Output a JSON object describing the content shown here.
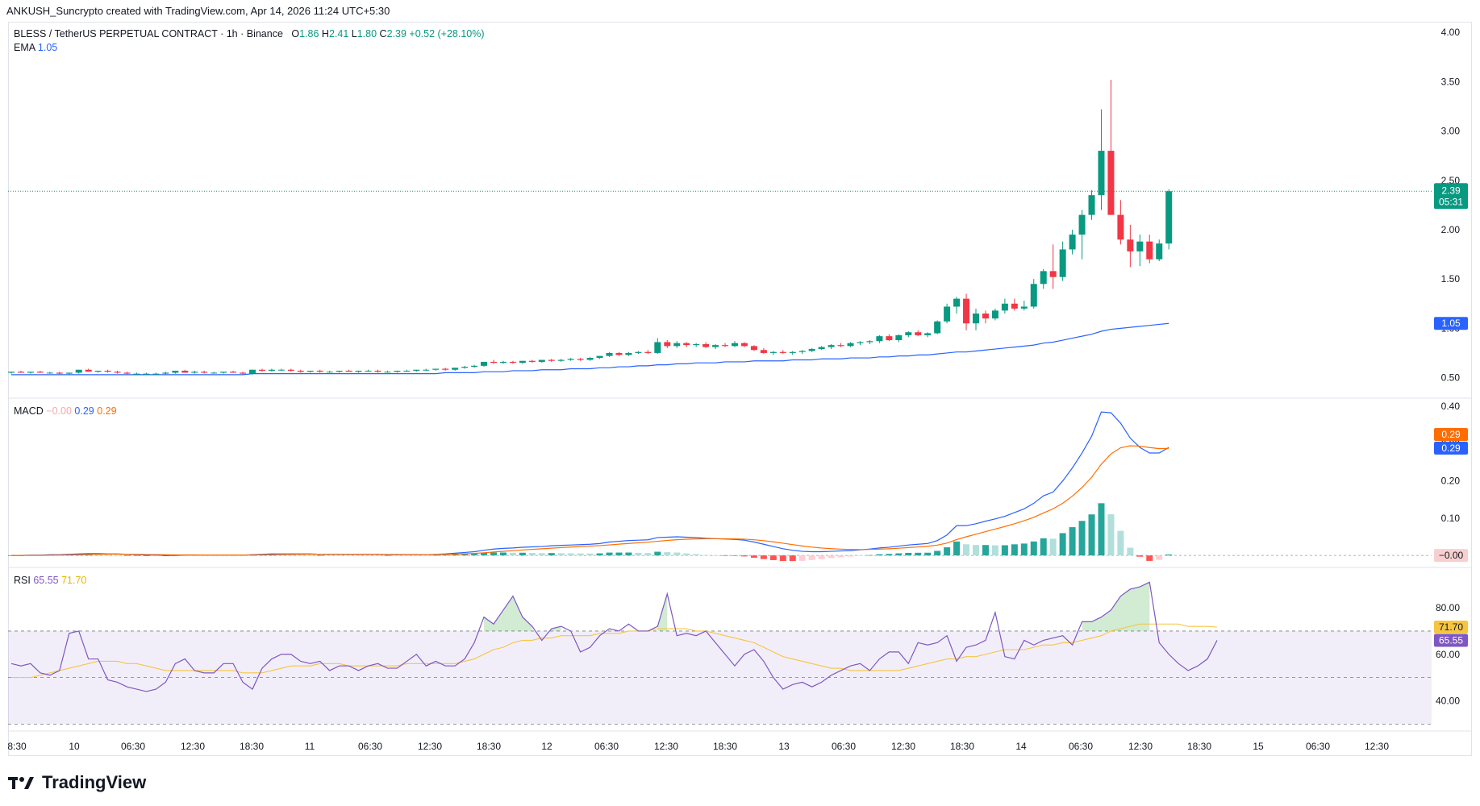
{
  "header": {
    "attribution": "ANKUSH_Suncrypto created with TradingView.com, Apr 14, 2026 11:24 UTC+5:30"
  },
  "legend": {
    "symbol": "BLESS / TetherUS PERPETUAL CONTRACT · 1h · Binance",
    "o_label": "O",
    "o": "1.86",
    "h_label": "H",
    "h": "2.41",
    "l_label": "L",
    "l": "1.80",
    "c_label": "C",
    "c": "2.39",
    "change": "+0.52 (+28.10%)",
    "ema_label": "EMA",
    "ema": "1.05",
    "macd_label": "MACD",
    "macd_hist": "−0.00",
    "macd_line": "0.29",
    "macd_signal": "0.29",
    "rsi_label": "RSI",
    "rsi": "65.55",
    "rsi_ma": "71.70"
  },
  "price_tags": {
    "last_price": "2.39",
    "countdown": "05:31",
    "ema": "1.05",
    "macd_signal": "0.29",
    "macd_line": "0.29",
    "macd_hist": "−0.00",
    "rsi_ma": "71.70",
    "rsi": "65.55"
  },
  "colors": {
    "up": "#089981",
    "down": "#f23645",
    "ema": "#2962ff",
    "macd": "#2962ff",
    "signal": "#ff6d00",
    "rsi": "#7e57c2",
    "rsi_ma": "#f5c542"
  },
  "footer": {
    "logo_text": "TradingView"
  },
  "chart_data": [
    {
      "type": "candlestick",
      "panel": "price",
      "y_ticks": [
        "4.00",
        "3.50",
        "3.00",
        "2.50",
        "2.00",
        "1.50",
        "1.00",
        "0.50"
      ],
      "ylim": [
        0.3,
        4.1
      ],
      "x_tick_labels": [
        "8:30",
        "10",
        "06:30",
        "12:30",
        "18:30",
        "11",
        "06:30",
        "12:30",
        "18:30",
        "12",
        "06:30",
        "12:30",
        "18:30",
        "13",
        "06:30",
        "12:30",
        "18:30",
        "14",
        "06:30",
        "12:30",
        "18:30",
        "15",
        "06:30",
        "12:30"
      ],
      "candles": [
        [
          0.55,
          0.56,
          0.54,
          0.56
        ],
        [
          0.56,
          0.57,
          0.55,
          0.55
        ],
        [
          0.55,
          0.56,
          0.54,
          0.56
        ],
        [
          0.56,
          0.57,
          0.55,
          0.55
        ],
        [
          0.55,
          0.56,
          0.54,
          0.55
        ],
        [
          0.55,
          0.56,
          0.53,
          0.54
        ],
        [
          0.54,
          0.55,
          0.53,
          0.55
        ],
        [
          0.55,
          0.58,
          0.54,
          0.58
        ],
        [
          0.58,
          0.59,
          0.56,
          0.56
        ],
        [
          0.56,
          0.57,
          0.55,
          0.57
        ],
        [
          0.57,
          0.58,
          0.55,
          0.56
        ],
        [
          0.56,
          0.57,
          0.54,
          0.55
        ],
        [
          0.55,
          0.56,
          0.53,
          0.54
        ],
        [
          0.54,
          0.55,
          0.53,
          0.54
        ],
        [
          0.54,
          0.55,
          0.53,
          0.54
        ],
        [
          0.54,
          0.55,
          0.53,
          0.54
        ],
        [
          0.54,
          0.56,
          0.53,
          0.55
        ],
        [
          0.55,
          0.57,
          0.54,
          0.57
        ],
        [
          0.57,
          0.58,
          0.55,
          0.55
        ],
        [
          0.55,
          0.57,
          0.54,
          0.56
        ],
        [
          0.56,
          0.57,
          0.54,
          0.55
        ],
        [
          0.55,
          0.56,
          0.54,
          0.55
        ],
        [
          0.55,
          0.56,
          0.54,
          0.56
        ],
        [
          0.56,
          0.57,
          0.55,
          0.55
        ],
        [
          0.55,
          0.56,
          0.53,
          0.54
        ],
        [
          0.54,
          0.58,
          0.53,
          0.58
        ],
        [
          0.58,
          0.59,
          0.56,
          0.57
        ],
        [
          0.57,
          0.59,
          0.56,
          0.58
        ],
        [
          0.58,
          0.59,
          0.57,
          0.58
        ],
        [
          0.58,
          0.59,
          0.56,
          0.57
        ],
        [
          0.57,
          0.58,
          0.55,
          0.56
        ],
        [
          0.56,
          0.57,
          0.55,
          0.57
        ],
        [
          0.57,
          0.58,
          0.55,
          0.56
        ],
        [
          0.56,
          0.57,
          0.55,
          0.56
        ],
        [
          0.56,
          0.57,
          0.55,
          0.57
        ],
        [
          0.57,
          0.58,
          0.56,
          0.56
        ],
        [
          0.56,
          0.57,
          0.55,
          0.57
        ],
        [
          0.57,
          0.58,
          0.56,
          0.57
        ],
        [
          0.57,
          0.58,
          0.55,
          0.56
        ],
        [
          0.56,
          0.57,
          0.55,
          0.56
        ],
        [
          0.56,
          0.57,
          0.55,
          0.57
        ],
        [
          0.57,
          0.58,
          0.56,
          0.57
        ],
        [
          0.57,
          0.58,
          0.56,
          0.58
        ],
        [
          0.58,
          0.59,
          0.57,
          0.58
        ],
        [
          0.58,
          0.59,
          0.57,
          0.59
        ],
        [
          0.59,
          0.6,
          0.57,
          0.58
        ],
        [
          0.58,
          0.6,
          0.57,
          0.6
        ],
        [
          0.6,
          0.62,
          0.59,
          0.61
        ],
        [
          0.61,
          0.63,
          0.6,
          0.62
        ],
        [
          0.62,
          0.66,
          0.61,
          0.66
        ],
        [
          0.66,
          0.68,
          0.64,
          0.65
        ],
        [
          0.65,
          0.67,
          0.64,
          0.66
        ],
        [
          0.66,
          0.67,
          0.64,
          0.65
        ],
        [
          0.65,
          0.67,
          0.64,
          0.67
        ],
        [
          0.67,
          0.68,
          0.65,
          0.66
        ],
        [
          0.66,
          0.68,
          0.65,
          0.68
        ],
        [
          0.68,
          0.69,
          0.66,
          0.67
        ],
        [
          0.67,
          0.69,
          0.66,
          0.68
        ],
        [
          0.68,
          0.7,
          0.67,
          0.69
        ],
        [
          0.69,
          0.7,
          0.67,
          0.68
        ],
        [
          0.68,
          0.71,
          0.67,
          0.7
        ],
        [
          0.7,
          0.72,
          0.69,
          0.72
        ],
        [
          0.72,
          0.76,
          0.71,
          0.75
        ],
        [
          0.75,
          0.76,
          0.72,
          0.73
        ],
        [
          0.73,
          0.76,
          0.72,
          0.75
        ],
        [
          0.75,
          0.77,
          0.74,
          0.76
        ],
        [
          0.76,
          0.78,
          0.74,
          0.75
        ],
        [
          0.75,
          0.9,
          0.74,
          0.86
        ],
        [
          0.86,
          0.88,
          0.8,
          0.82
        ],
        [
          0.82,
          0.87,
          0.8,
          0.85
        ],
        [
          0.85,
          0.86,
          0.81,
          0.83
        ],
        [
          0.83,
          0.85,
          0.81,
          0.84
        ],
        [
          0.84,
          0.86,
          0.8,
          0.81
        ],
        [
          0.81,
          0.84,
          0.79,
          0.83
        ],
        [
          0.83,
          0.85,
          0.81,
          0.82
        ],
        [
          0.82,
          0.87,
          0.81,
          0.85
        ],
        [
          0.85,
          0.86,
          0.81,
          0.82
        ],
        [
          0.82,
          0.83,
          0.77,
          0.78
        ],
        [
          0.78,
          0.8,
          0.74,
          0.75
        ],
        [
          0.75,
          0.77,
          0.73,
          0.76
        ],
        [
          0.76,
          0.78,
          0.74,
          0.75
        ],
        [
          0.75,
          0.77,
          0.73,
          0.76
        ],
        [
          0.76,
          0.78,
          0.74,
          0.77
        ],
        [
          0.77,
          0.8,
          0.76,
          0.79
        ],
        [
          0.79,
          0.82,
          0.78,
          0.81
        ],
        [
          0.81,
          0.84,
          0.79,
          0.83
        ],
        [
          0.83,
          0.85,
          0.81,
          0.82
        ],
        [
          0.82,
          0.86,
          0.81,
          0.85
        ],
        [
          0.85,
          0.87,
          0.83,
          0.86
        ],
        [
          0.86,
          0.88,
          0.84,
          0.87
        ],
        [
          0.87,
          0.93,
          0.85,
          0.92
        ],
        [
          0.92,
          0.94,
          0.87,
          0.88
        ],
        [
          0.88,
          0.94,
          0.86,
          0.93
        ],
        [
          0.93,
          0.97,
          0.91,
          0.96
        ],
        [
          0.96,
          0.98,
          0.92,
          0.93
        ],
        [
          0.93,
          0.96,
          0.91,
          0.95
        ],
        [
          0.95,
          1.08,
          0.94,
          1.07
        ],
        [
          1.07,
          1.25,
          1.05,
          1.22
        ],
        [
          1.22,
          1.32,
          1.15,
          1.3
        ],
        [
          1.3,
          1.35,
          0.98,
          1.05
        ],
        [
          1.05,
          1.2,
          0.98,
          1.15
        ],
        [
          1.15,
          1.18,
          1.05,
          1.1
        ],
        [
          1.1,
          1.2,
          1.08,
          1.18
        ],
        [
          1.18,
          1.3,
          1.15,
          1.25
        ],
        [
          1.25,
          1.3,
          1.18,
          1.2
        ],
        [
          1.2,
          1.28,
          1.18,
          1.22
        ],
        [
          1.22,
          1.5,
          1.2,
          1.45
        ],
        [
          1.45,
          1.6,
          1.4,
          1.58
        ],
        [
          1.58,
          1.85,
          1.4,
          1.52
        ],
        [
          1.52,
          1.88,
          1.48,
          1.8
        ],
        [
          1.8,
          2.0,
          1.75,
          1.95
        ],
        [
          1.95,
          2.2,
          1.7,
          2.15
        ],
        [
          2.15,
          2.4,
          2.1,
          2.35
        ],
        [
          2.35,
          3.22,
          2.2,
          2.8
        ],
        [
          2.8,
          3.52,
          2.15,
          2.15
        ],
        [
          2.15,
          2.3,
          1.85,
          1.9
        ],
        [
          1.9,
          2.05,
          1.62,
          1.78
        ],
        [
          1.78,
          1.95,
          1.63,
          1.88
        ],
        [
          1.88,
          1.95,
          1.66,
          1.7
        ],
        [
          1.7,
          1.9,
          1.68,
          1.86
        ],
        [
          1.86,
          2.41,
          1.8,
          2.39
        ]
      ],
      "ema": [
        0.53,
        0.53,
        0.53,
        0.53,
        0.53,
        0.53,
        0.53,
        0.53,
        0.53,
        0.53,
        0.53,
        0.53,
        0.53,
        0.53,
        0.53,
        0.53,
        0.53,
        0.53,
        0.53,
        0.53,
        0.53,
        0.53,
        0.53,
        0.53,
        0.53,
        0.54,
        0.54,
        0.54,
        0.54,
        0.54,
        0.54,
        0.54,
        0.54,
        0.54,
        0.54,
        0.54,
        0.54,
        0.54,
        0.54,
        0.54,
        0.54,
        0.54,
        0.54,
        0.54,
        0.54,
        0.55,
        0.55,
        0.55,
        0.55,
        0.56,
        0.56,
        0.56,
        0.57,
        0.57,
        0.57,
        0.58,
        0.58,
        0.58,
        0.59,
        0.59,
        0.59,
        0.6,
        0.6,
        0.61,
        0.61,
        0.62,
        0.62,
        0.63,
        0.63,
        0.64,
        0.64,
        0.65,
        0.65,
        0.65,
        0.66,
        0.66,
        0.66,
        0.67,
        0.67,
        0.67,
        0.67,
        0.68,
        0.68,
        0.68,
        0.69,
        0.69,
        0.69,
        0.7,
        0.7,
        0.7,
        0.71,
        0.71,
        0.72,
        0.72,
        0.73,
        0.73,
        0.74,
        0.75,
        0.76,
        0.76,
        0.77,
        0.78,
        0.79,
        0.8,
        0.81,
        0.82,
        0.83,
        0.85,
        0.86,
        0.88,
        0.9,
        0.92,
        0.94,
        0.97,
        0.99,
        1.0,
        1.01,
        1.02,
        1.03,
        1.04,
        1.05
      ]
    },
    {
      "type": "macd",
      "panel": "macd",
      "y_ticks": [
        "0.40",
        "0.30",
        "0.20",
        "0.10",
        "−0.00"
      ],
      "ylim": [
        -0.03,
        0.42
      ],
      "macd": [
        0.0,
        0.0,
        0.001,
        0.001,
        0.002,
        0.002,
        0.003,
        0.004,
        0.005,
        0.005,
        0.004,
        0.004,
        0.003,
        0.002,
        0.001,
        0.001,
        0.0,
        0.0,
        0.001,
        0.001,
        0.001,
        0.001,
        0.001,
        0.001,
        0.001,
        0.002,
        0.003,
        0.004,
        0.004,
        0.004,
        0.004,
        0.004,
        0.003,
        0.003,
        0.003,
        0.003,
        0.003,
        0.003,
        0.003,
        0.002,
        0.002,
        0.002,
        0.002,
        0.002,
        0.003,
        0.004,
        0.006,
        0.008,
        0.01,
        0.014,
        0.017,
        0.019,
        0.02,
        0.022,
        0.023,
        0.024,
        0.026,
        0.027,
        0.028,
        0.029,
        0.03,
        0.032,
        0.036,
        0.038,
        0.04,
        0.041,
        0.042,
        0.048,
        0.049,
        0.05,
        0.049,
        0.048,
        0.046,
        0.045,
        0.044,
        0.043,
        0.041,
        0.036,
        0.03,
        0.024,
        0.018,
        0.014,
        0.011,
        0.01,
        0.01,
        0.011,
        0.012,
        0.013,
        0.015,
        0.017,
        0.02,
        0.022,
        0.025,
        0.028,
        0.03,
        0.032,
        0.04,
        0.055,
        0.08,
        0.08,
        0.085,
        0.092,
        0.098,
        0.105,
        0.115,
        0.125,
        0.14,
        0.16,
        0.17,
        0.2,
        0.235,
        0.275,
        0.32,
        0.385,
        0.383,
        0.355,
        0.315,
        0.29,
        0.275,
        0.275,
        0.29
      ]
    },
    {
      "type": "line",
      "panel": "rsi",
      "y_ticks": [
        "80.00",
        "60.00",
        "40.00"
      ],
      "ylim": [
        27,
        97
      ],
      "upper_band": 70,
      "middle_band": 50,
      "lower_band": 30,
      "rsi": [
        56,
        55,
        56,
        52,
        51,
        53,
        69,
        70,
        58,
        58,
        49,
        48,
        46,
        45,
        44,
        45,
        48,
        56,
        58,
        53,
        52,
        52,
        56,
        56,
        48,
        45,
        54,
        58,
        60,
        60,
        57,
        56,
        57,
        53,
        55,
        55,
        53,
        55,
        56,
        54,
        54,
        57,
        60,
        55,
        57,
        55,
        55,
        58,
        65,
        76,
        73,
        79,
        85,
        76,
        72,
        66,
        71,
        72,
        70,
        61,
        63,
        68,
        71,
        70,
        73,
        70,
        70,
        72,
        86,
        68,
        69,
        68,
        70,
        65,
        60,
        55,
        60,
        62,
        57,
        50,
        45,
        47,
        48,
        46,
        48,
        51,
        53,
        55,
        56,
        53,
        58,
        61,
        61,
        56,
        65,
        64,
        65,
        68,
        57,
        63,
        64,
        66,
        78,
        59,
        58,
        66,
        64,
        66,
        67,
        68,
        64,
        74,
        74,
        76,
        79,
        85,
        88,
        89,
        91,
        65,
        60,
        56,
        53,
        55,
        58,
        66
      ],
      "rsi_ma": [
        50,
        50,
        50,
        51,
        52,
        53,
        54,
        55,
        56,
        57,
        57,
        57,
        56,
        56,
        55,
        54,
        53,
        53,
        53,
        53,
        53,
        53,
        53,
        53,
        52,
        52,
        52,
        53,
        54,
        55,
        55,
        55,
        56,
        56,
        56,
        55,
        55,
        55,
        55,
        55,
        55,
        56,
        56,
        56,
        56,
        56,
        56,
        57,
        58,
        60,
        62,
        63,
        65,
        66,
        66,
        67,
        67,
        68,
        68,
        68,
        68,
        69,
        69,
        69,
        70,
        70,
        70,
        71,
        71,
        71,
        71,
        70,
        70,
        69,
        68,
        67,
        66,
        65,
        63,
        61,
        59,
        58,
        57,
        56,
        55,
        54,
        54,
        53,
        53,
        53,
        53,
        53,
        53,
        54,
        55,
        56,
        57,
        58,
        58,
        59,
        59,
        60,
        61,
        62,
        62,
        62,
        63,
        64,
        64,
        65,
        65,
        66,
        67,
        68,
        70,
        71,
        72,
        73,
        73,
        73,
        73,
        73,
        72,
        72,
        72,
        71.7
      ]
    }
  ]
}
